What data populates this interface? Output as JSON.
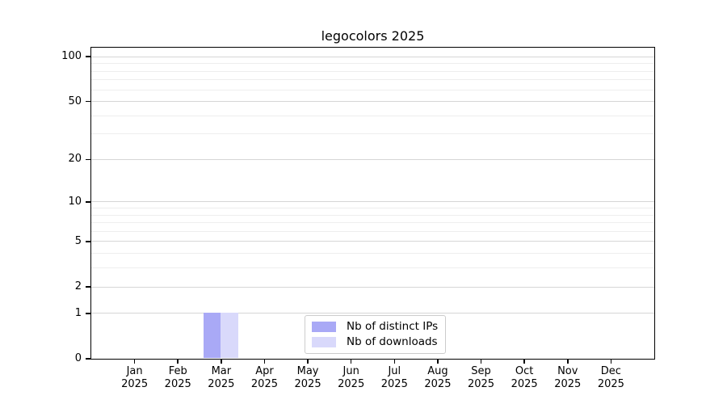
{
  "chart_data": {
    "type": "bar",
    "title": "legocolors 2025",
    "categories": [
      "Jan 2025",
      "Feb 2025",
      "Mar 2025",
      "Apr 2025",
      "May 2025",
      "Jun 2025",
      "Jul 2025",
      "Aug 2025",
      "Sep 2025",
      "Oct 2025",
      "Nov 2025",
      "Dec 2025"
    ],
    "series": [
      {
        "name": "Nb of distinct IPs",
        "color": "#a9a9f6",
        "values": [
          0,
          0,
          1,
          0,
          0,
          0,
          0,
          0,
          0,
          0,
          0,
          0
        ]
      },
      {
        "name": "Nb of downloads",
        "color": "#d9d9fb",
        "values": [
          0,
          0,
          1,
          0,
          0,
          0,
          0,
          0,
          0,
          0,
          0,
          0
        ]
      }
    ],
    "xlabel": "",
    "ylabel": "",
    "y_axis": {
      "scale": "log1p",
      "ticks": [
        0,
        1,
        2,
        5,
        10,
        20,
        50,
        100
      ],
      "minor_gridlines": [
        3,
        4,
        6,
        7,
        8,
        9,
        30,
        40,
        60,
        70,
        80,
        90
      ],
      "ylim": [
        0,
        113
      ]
    },
    "grid": "horizontal",
    "legend_position": "lower center"
  },
  "colors": {
    "major_grid": "#d6d6d6",
    "minor_grid": "#eeeeee",
    "axis": "#000000",
    "legend_border": "#cccccc",
    "background": "#ffffff"
  }
}
